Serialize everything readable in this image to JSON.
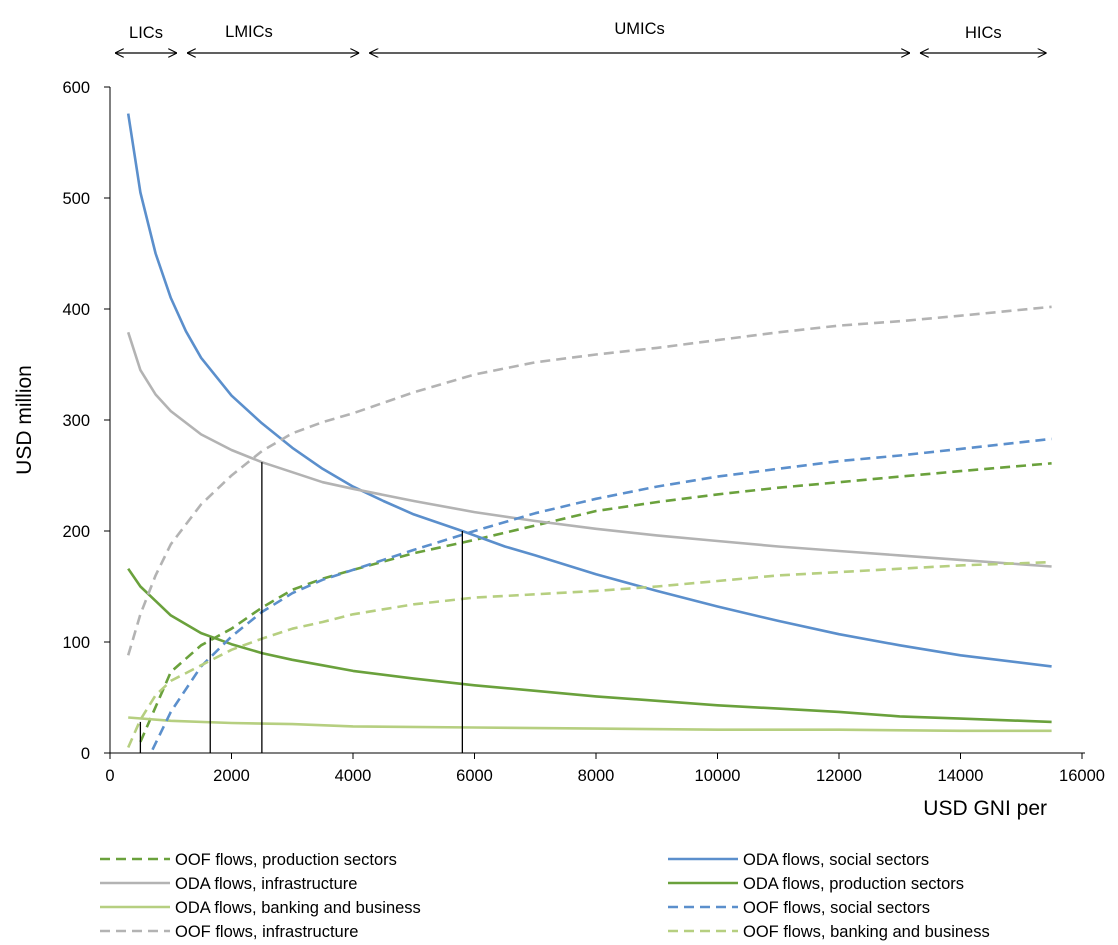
{
  "chart_data": {
    "type": "line",
    "title": "",
    "xlabel": "USD GNI per",
    "ylabel": "USD million",
    "xlim": [
      0,
      16000
    ],
    "ylim": [
      0,
      600
    ],
    "xticks": [
      "0",
      "2000",
      "4000",
      "6000",
      "8000",
      "10000",
      "12000",
      "14000",
      "16000"
    ],
    "yticks": [
      "0",
      "100",
      "200",
      "300",
      "400",
      "500",
      "600"
    ],
    "grid": false,
    "legend_position": "bottom",
    "income_groups": [
      {
        "label": "LICs",
        "from": 0,
        "to": 1185
      },
      {
        "label": "LMICs",
        "from": 1185,
        "to": 4185
      },
      {
        "label": "UMICs",
        "from": 4185,
        "to": 13250
      },
      {
        "label": "HICs",
        "from": 13250,
        "to": 15500
      }
    ],
    "markers": [
      {
        "x": 500,
        "y": 28
      },
      {
        "x": 1650,
        "y": 104
      },
      {
        "x": 2500,
        "y": 262
      },
      {
        "x": 5800,
        "y": 200
      }
    ],
    "series": [
      {
        "name": "OOF flows, production sectors",
        "color": "#6aa13c",
        "dash": true,
        "x": [
          500,
          1000,
          1500,
          2000,
          2500,
          3000,
          3500,
          4000,
          5000,
          6000,
          7000,
          8000,
          9000,
          10000,
          11000,
          12000,
          13000,
          14000,
          15500
        ],
        "values": [
          10,
          73,
          97,
          112,
          131,
          147,
          157,
          165,
          180,
          192,
          205,
          218,
          226,
          233,
          239,
          244,
          249,
          254,
          261
        ]
      },
      {
        "name": "ODA flows, social sectors",
        "color": "#5b8fcc",
        "dash": false,
        "x": [
          300,
          500,
          750,
          1000,
          1250,
          1500,
          2000,
          2500,
          3000,
          3500,
          4000,
          4500,
          5000,
          5800,
          6500,
          7000,
          8000,
          9000,
          10000,
          11000,
          12000,
          13000,
          14000,
          15500
        ],
        "values": [
          576,
          505,
          450,
          410,
          380,
          356,
          322,
          297,
          275,
          256,
          240,
          227,
          215,
          200,
          186,
          178,
          161,
          146,
          132,
          119,
          107,
          97,
          88,
          78
        ]
      },
      {
        "name": "ODA flows, infrastructure",
        "color": "#b3b3b3",
        "dash": false,
        "x": [
          300,
          500,
          750,
          1000,
          1500,
          2000,
          2500,
          3000,
          3500,
          4000,
          5000,
          6000,
          7000,
          8000,
          9000,
          10000,
          11000,
          12000,
          13000,
          14000,
          15500
        ],
        "values": [
          379,
          345,
          323,
          308,
          287,
          273,
          262,
          253,
          244,
          238,
          227,
          217,
          209,
          202,
          196,
          191,
          186,
          182,
          178,
          174,
          168
        ]
      },
      {
        "name": "ODA flows, production sectors",
        "color": "#6aa13c",
        "dash": false,
        "x": [
          300,
          500,
          750,
          1000,
          1500,
          2000,
          2500,
          3000,
          3500,
          4000,
          5000,
          6000,
          7000,
          8000,
          9000,
          10000,
          11000,
          12000,
          13000,
          14000,
          15500
        ],
        "values": [
          166,
          150,
          137,
          124,
          108,
          98,
          90,
          84,
          79,
          74,
          67,
          61,
          56,
          51,
          47,
          43,
          40,
          37,
          33,
          31,
          28
        ]
      },
      {
        "name": "ODA flows, banking and business",
        "color": "#b6cf80",
        "dash": false,
        "x": [
          300,
          1000,
          2000,
          3000,
          4000,
          6000,
          8000,
          10000,
          12000,
          14000,
          15500
        ],
        "values": [
          32,
          29,
          27,
          26,
          24,
          23,
          22,
          21,
          21,
          20,
          20
        ]
      },
      {
        "name": "OOF flows, social sectors",
        "color": "#5b8fcc",
        "dash": true,
        "x": [
          700,
          1000,
          1500,
          2000,
          2500,
          3000,
          3500,
          4000,
          5000,
          6000,
          7000,
          8000,
          9000,
          10000,
          11000,
          12000,
          13000,
          14000,
          15500
        ],
        "values": [
          3,
          37,
          78,
          105,
          127,
          144,
          156,
          165,
          183,
          200,
          216,
          229,
          240,
          249,
          256,
          263,
          268,
          274,
          283
        ]
      },
      {
        "name": "OOF flows, infrastructure",
        "color": "#b3b3b3",
        "dash": true,
        "x": [
          300,
          500,
          750,
          1000,
          1500,
          2000,
          2500,
          3000,
          3500,
          4000,
          5000,
          6000,
          7000,
          8000,
          9000,
          10000,
          11000,
          12000,
          13000,
          14000,
          15500
        ],
        "values": [
          88,
          125,
          160,
          188,
          224,
          250,
          272,
          288,
          298,
          306,
          325,
          341,
          352,
          359,
          365,
          372,
          379,
          385,
          389,
          394,
          402
        ]
      },
      {
        "name": "OOF flows, banking and business",
        "color": "#b6cf80",
        "dash": true,
        "x": [
          300,
          500,
          750,
          1000,
          1500,
          2000,
          2500,
          3000,
          3500,
          4000,
          5000,
          6000,
          7000,
          8000,
          9000,
          10000,
          11000,
          12000,
          13000,
          14000,
          15500
        ],
        "values": [
          5,
          30,
          52,
          65,
          79,
          93,
          103,
          112,
          118,
          125,
          134,
          140,
          143,
          146,
          150,
          155,
          160,
          163,
          166,
          169,
          172
        ]
      }
    ]
  }
}
